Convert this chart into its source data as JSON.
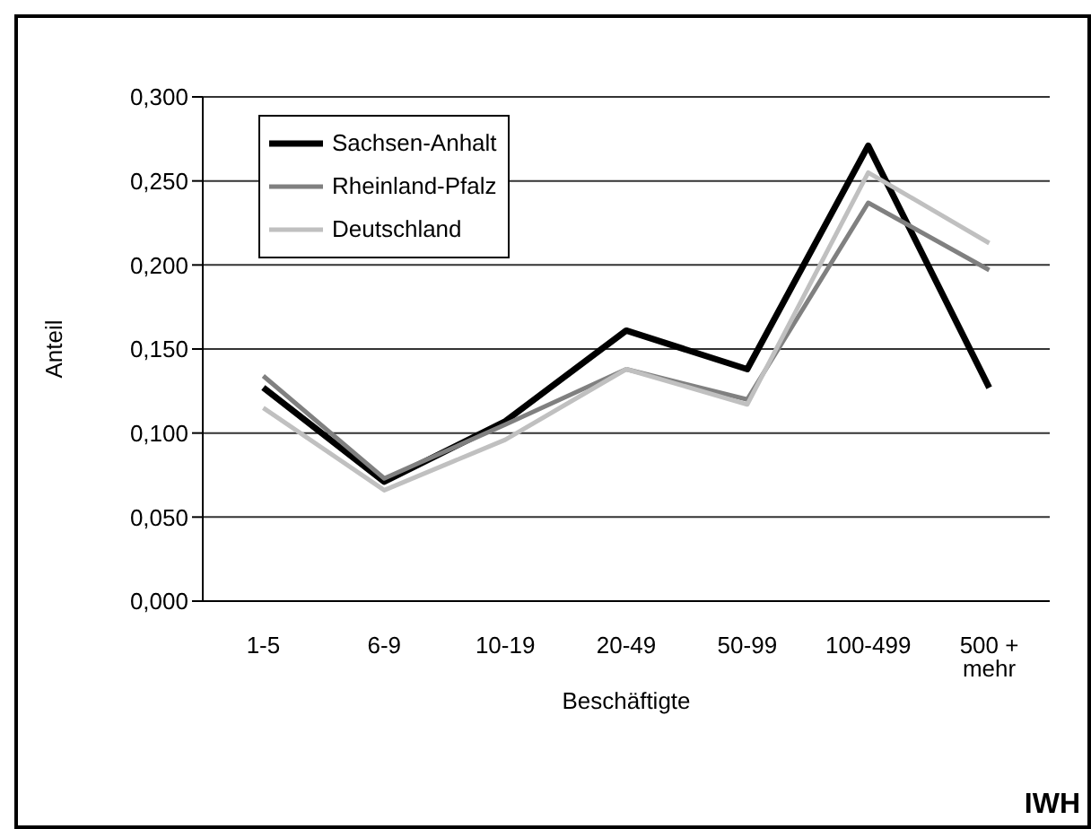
{
  "chart_data": {
    "type": "line",
    "xlabel": "Beschäftigte",
    "ylabel": "Anteil",
    "categories": [
      "1-5",
      "6-9",
      "10-19",
      "20-49",
      "50-99",
      "100-499",
      "500 + mehr"
    ],
    "series": [
      {
        "name": "Sachsen-Anhalt",
        "color": "#000000",
        "values": [
          0.127,
          0.071,
          0.107,
          0.161,
          0.138,
          0.271,
          0.127
        ]
      },
      {
        "name": "Rheinland-Pfalz",
        "color": "#808080",
        "values": [
          0.134,
          0.073,
          0.105,
          0.138,
          0.12,
          0.237,
          0.197
        ]
      },
      {
        "name": "Deutschland",
        "color": "#c0c0c0",
        "values": [
          0.115,
          0.066,
          0.096,
          0.138,
          0.117,
          0.255,
          0.213
        ]
      }
    ],
    "ylim": [
      0,
      0.3
    ],
    "yticks": [
      {
        "value": 0,
        "label": "0,000"
      },
      {
        "value": 0.05,
        "label": "0,050"
      },
      {
        "value": 0.1,
        "label": "0,100"
      },
      {
        "value": 0.15,
        "label": "0,150"
      },
      {
        "value": 0.2,
        "label": "0,200"
      },
      {
        "value": 0.25,
        "label": "0,250"
      },
      {
        "value": 0.3,
        "label": "0,300"
      }
    ],
    "grid": "y",
    "legend": "top left",
    "marker": "none",
    "line_style": "solid",
    "annotations": [
      "IWH"
    ]
  }
}
